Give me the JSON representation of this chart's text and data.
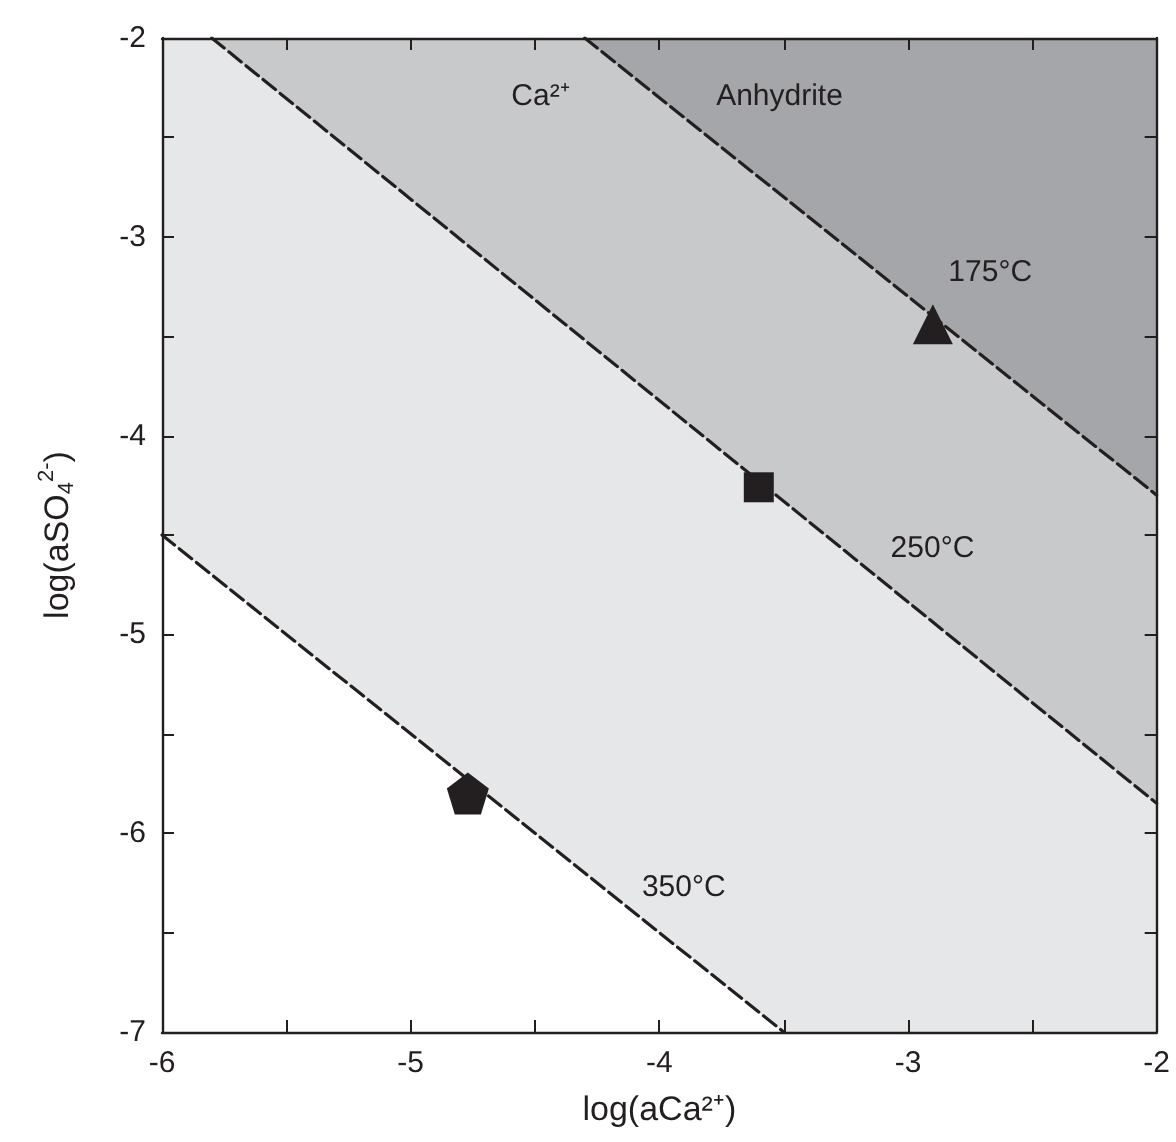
{
  "chart_data": {
    "type": "line",
    "xlabel": "log(aCa²⁺)",
    "ylabel": "log(aSO$_{4}$$^{2-}$)",
    "xlim": [
      -6,
      -2
    ],
    "ylim": [
      -7,
      -2
    ],
    "xticks": [
      -6,
      {
        "value": -5.5,
        "label": null
      },
      -5,
      {
        "value": -4.5,
        "label": null
      },
      -4,
      {
        "value": -3.5,
        "label": null
      },
      -3,
      {
        "value": -2.5,
        "label": null
      },
      -2
    ],
    "yticks": [
      -7,
      {
        "value": -6.5,
        "label": null
      },
      -6,
      {
        "value": -5.5,
        "label": null
      },
      -5,
      {
        "value": -4.5,
        "label": null
      },
      -4,
      {
        "value": -3.5,
        "label": null
      },
      -3,
      {
        "value": -2.5,
        "label": null
      },
      -2
    ],
    "grid": false,
    "legend": false,
    "line_style": "dashed",
    "marker": "none",
    "series": [
      {
        "name": "175°C",
        "color": "#231f20",
        "x": [
          -4.3,
          -2
        ],
        "values": [
          -2,
          -4.3
        ]
      },
      {
        "name": "250°C",
        "color": "#231f20",
        "x": [
          -5.8,
          -2
        ],
        "values": [
          -2,
          -5.85
        ]
      },
      {
        "name": "350°C",
        "color": "#231f20",
        "x": [
          -6,
          -3.5
        ],
        "values": [
          -4.5,
          -7
        ]
      },
      {
        "type": "scatter",
        "color": "#231f20",
        "x": [
          -4.77
        ],
        "values": [
          -5.8
        ]
      },
      {
        "type": "scatter",
        "color": "#231f20",
        "marker": "square",
        "x": [
          -3.6
        ],
        "values": [
          -4.26
        ]
      },
      {
        "type": "scatter",
        "color": "#231f20",
        "marker": "triangle",
        "x": [
          -2.9
        ],
        "values": [
          -3.44
        ]
      }
    ],
    "annotations": [
      "Ca²⁺",
      "Anhydrite"
    ]
  }
}
